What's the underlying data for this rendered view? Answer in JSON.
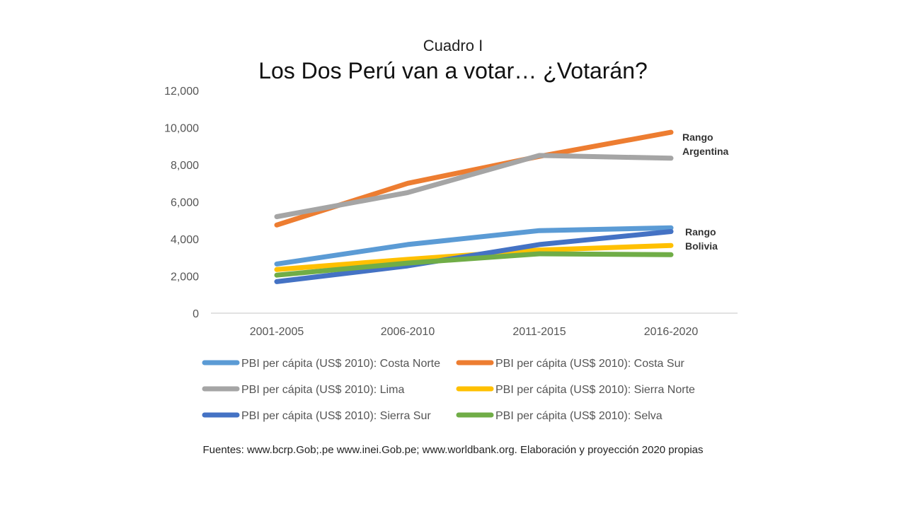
{
  "header": {
    "subtitle": "Cuadro I",
    "title": "Los Dos Perú van a votar… ¿Votarán?"
  },
  "footer": {
    "source": "Fuentes: www.bcrp.Gob;.pe www.inei.Gob.pe; www.worldbank.org. Elaboración y proyección 2020 propias"
  },
  "chart_data": {
    "type": "line",
    "title": "Los Dos Perú van a votar… ¿Votarán?",
    "subtitle": "Cuadro I",
    "xlabel": "",
    "ylabel": "",
    "categories": [
      "2001-2005",
      "2006-2010",
      "2011-2015",
      "2016-2020"
    ],
    "ylim": [
      0,
      12000
    ],
    "yticks": [
      0,
      2000,
      4000,
      6000,
      8000,
      10000,
      12000
    ],
    "ytick_labels": [
      "0",
      "2,000",
      "4,000",
      "6,000",
      "8,000",
      "10,000",
      "12,000"
    ],
    "grid": false,
    "legend_position": "bottom",
    "series": [
      {
        "name": "PBI per cápita (US$ 2010): Costa Norte",
        "color": "#5B9BD5",
        "values": [
          2650,
          3700,
          4450,
          4600
        ]
      },
      {
        "name": "PBI per cápita (US$ 2010): Costa Sur",
        "color": "#ED7D31",
        "values": [
          4750,
          7000,
          8450,
          9750
        ]
      },
      {
        "name": "PBI per cápita (US$ 2010): Lima",
        "color": "#A5A5A5",
        "values": [
          5200,
          6500,
          8500,
          8350
        ]
      },
      {
        "name": "PBI per cápita (US$ 2010): Sierra Norte",
        "color": "#FFC000",
        "values": [
          2350,
          2900,
          3400,
          3650
        ]
      },
      {
        "name": "PBI per cápita (US$ 2010): Sierra Sur",
        "color": "#4472C4",
        "values": [
          1700,
          2550,
          3700,
          4400
        ]
      },
      {
        "name": "PBI per cápita (US$ 2010): Selva",
        "color": "#70AD47",
        "values": [
          2050,
          2700,
          3200,
          3150
        ]
      }
    ],
    "annotations": [
      {
        "lines": [
          "Rango",
          "Argentina"
        ],
        "near": "Lima / Costa Sur, 2016-2020"
      },
      {
        "lines": [
          "Rango",
          "Bolivia"
        ],
        "near": "Costa Norte / Sierra Sur, 2016-2020"
      }
    ]
  }
}
